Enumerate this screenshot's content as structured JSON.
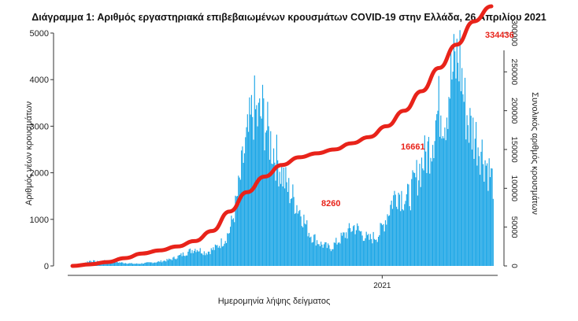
{
  "chart_data": {
    "type": "bar",
    "title": "Διάγραμμα 1: Αριθμός εργαστηριακά επιβεβαιωμένων κρουσμάτων COVID-19 στην Ελλάδα, 26 Απριλίου 2021",
    "xlabel": "Ημερομηνία λήψης δείγματος",
    "ylabel": "Αριθμός νέων κρουσμάτων",
    "ylabel_right": "Συνολικός αριθμός κρουσμάτων",
    "x_tick_labels": [
      "2021"
    ],
    "ylim": [
      0,
      5000
    ],
    "ylim_right": [
      0,
      300000
    ],
    "yticks_left": [
      0,
      1000,
      2000,
      3000,
      4000,
      5000
    ],
    "yticks_right": [
      0,
      50000,
      100000,
      150000,
      200000,
      250000,
      300000
    ],
    "daily_anchor_values": [
      0,
      10,
      40,
      80,
      120,
      100,
      90,
      110,
      120,
      90,
      80,
      70,
      60,
      50,
      50,
      60,
      70,
      80,
      90,
      110,
      130,
      160,
      200,
      250,
      300,
      350,
      400,
      350,
      300,
      350,
      400,
      500,
      600,
      800,
      1200,
      1800,
      2500,
      3000,
      3600,
      3300,
      3500,
      3000,
      2700,
      2400,
      2100,
      1800,
      1600,
      1400,
      1200,
      900,
      700,
      600,
      500,
      450,
      400,
      500,
      600,
      700,
      800,
      900,
      800,
      700,
      600,
      650,
      700,
      900,
      1200,
      1500,
      1700,
      1600,
      1500,
      1700,
      2000,
      2300,
      2500,
      2800,
      3300,
      3700,
      3400,
      4200,
      4500,
      4800,
      3700,
      3200,
      3000,
      2800,
      2500,
      2200,
      1900
    ],
    "cumulative_anchor_values": [
      0,
      2000,
      5000,
      10000,
      16000,
      20000,
      25000,
      32000,
      45000,
      70000,
      95000,
      115000,
      130000,
      140000,
      145000,
      150000,
      158000,
      166000,
      180000,
      200000,
      225000,
      255000,
      285000,
      315000,
      334436
    ],
    "annotations": [
      {
        "label": "8260",
        "position": "lower-middle"
      },
      {
        "label": "16661",
        "position": "middle-right"
      },
      {
        "label": "334436",
        "position": "end"
      }
    ],
    "series": [
      {
        "type": "bar",
        "color": "#1ca6e6"
      },
      {
        "type": "line",
        "color": "#e8231a"
      }
    ],
    "grid": false,
    "legend": "none"
  }
}
